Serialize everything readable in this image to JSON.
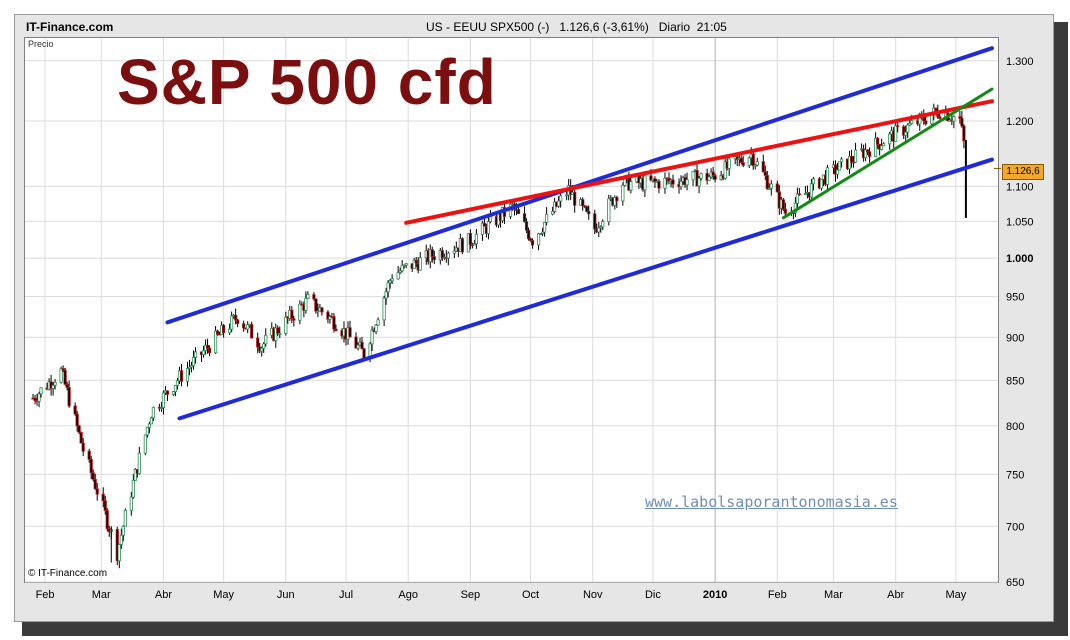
{
  "header": {
    "brand": "IT-Finance.com",
    "quote": "US - EEUU SPX500 (-)   1.126,6 (-3,61%)   Diario  21:05"
  },
  "precio_label": "Precio",
  "title_overlay": "S&P 500 cfd",
  "copyright": "© IT-Finance.com",
  "watermark": "www.labolsaporantonomasia.es",
  "last_price_label": "1.126,6",
  "colors": {
    "channel": "#1f2bd6",
    "resistance": "#ee1111",
    "support_short": "#138a13",
    "bull_candle": "#2e8b57",
    "bear_candle": "#b22222",
    "title": "#7b0f0f",
    "last_box": "#f0a830"
  },
  "chart_data": {
    "type": "candlestick",
    "title": "",
    "xlabel": "",
    "ylabel": "Precio",
    "scale": "log",
    "ylim": [
      650,
      1340
    ],
    "yticks": [
      650,
      700,
      750,
      800,
      850,
      900,
      950,
      1000,
      1050,
      1100,
      1200,
      1300
    ],
    "ytick_labels": [
      "650",
      "700",
      "750",
      "800",
      "850",
      "900",
      "950",
      "1.000",
      "1.050",
      "1.100",
      "1.200",
      "1.300"
    ],
    "x_axis_labels": [
      "Feb",
      "Mar",
      "Abr",
      "May",
      "Jun",
      "Jul",
      "Ago",
      "Sep",
      "Oct",
      "Nov",
      "Dic",
      "2010",
      "Feb",
      "Mar",
      "Abr",
      "May"
    ],
    "x_axis_dates": [
      "2009-02-01",
      "2009-03-01",
      "2009-04-01",
      "2009-05-01",
      "2009-06-01",
      "2009-07-01",
      "2009-08-01",
      "2009-09-01",
      "2009-10-01",
      "2009-11-01",
      "2009-12-01",
      "2010-01-01",
      "2010-02-01",
      "2010-03-01",
      "2010-04-01",
      "2010-05-01"
    ],
    "grid": true,
    "last_price": 1126.6,
    "change_percent": -3.61,
    "price_path": [
      [
        "2009-01-26",
        830
      ],
      [
        "2009-02-09",
        860
      ],
      [
        "2009-02-20",
        775
      ],
      [
        "2009-03-09",
        676
      ],
      [
        "2009-03-26",
        815
      ],
      [
        "2009-04-10",
        856
      ],
      [
        "2009-05-08",
        925
      ],
      [
        "2009-05-20",
        890
      ],
      [
        "2009-06-12",
        945
      ],
      [
        "2009-06-26",
        918
      ],
      [
        "2009-07-10",
        880
      ],
      [
        "2009-07-24",
        978
      ],
      [
        "2009-08-14",
        1005
      ],
      [
        "2009-08-31",
        1022
      ],
      [
        "2009-09-22",
        1070
      ],
      [
        "2009-10-02",
        1025
      ],
      [
        "2009-10-20",
        1095
      ],
      [
        "2009-11-02",
        1040
      ],
      [
        "2009-11-16",
        1105
      ],
      [
        "2009-12-01",
        1105
      ],
      [
        "2009-12-31",
        1115
      ],
      [
        "2010-01-19",
        1148
      ],
      [
        "2010-02-05",
        1063
      ],
      [
        "2010-02-22",
        1108
      ],
      [
        "2010-03-15",
        1150
      ],
      [
        "2010-04-01",
        1180
      ],
      [
        "2010-04-23",
        1217
      ],
      [
        "2010-05-03",
        1202
      ],
      [
        "2010-05-05",
        1165
      ],
      [
        "2010-05-06",
        1126.6
      ]
    ],
    "min_low": {
      "date": "2009-03-06",
      "value": 667
    },
    "flash_crash_low": {
      "date": "2010-05-06",
      "value": 1055
    },
    "trendlines": [
      {
        "name": "Canal superior",
        "color": "#1f2bd6",
        "points": [
          [
            "2009-04-03",
            918
          ],
          [
            "2010-05-19",
            1322
          ]
        ]
      },
      {
        "name": "Canal inferior",
        "color": "#1f2bd6",
        "points": [
          [
            "2009-04-09",
            808
          ],
          [
            "2010-05-19",
            1140
          ]
        ]
      },
      {
        "name": "Resistencia",
        "color": "#ee1111",
        "points": [
          [
            "2009-07-31",
            1048
          ],
          [
            "2010-05-19",
            1232
          ]
        ]
      },
      {
        "name": "Soporte corto plazo",
        "color": "#138a13",
        "points": [
          [
            "2010-02-04",
            1055
          ],
          [
            "2010-05-19",
            1252
          ]
        ]
      }
    ]
  }
}
